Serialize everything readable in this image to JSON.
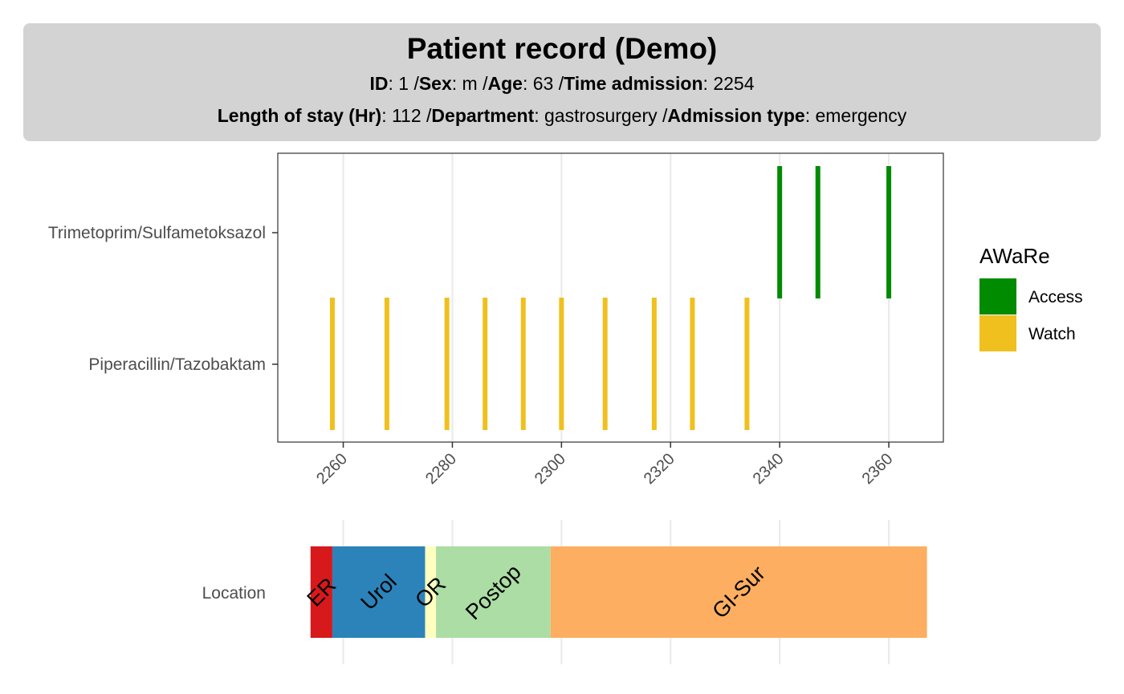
{
  "header": {
    "title": "Patient record (Demo)",
    "line1": [
      {
        "label": "ID",
        "value": ": 1 /"
      },
      {
        "label": "Sex",
        "value": ": m /"
      },
      {
        "label": "Age",
        "value": ": 63 /"
      },
      {
        "label": "Time admission",
        "value": ": 2254"
      }
    ],
    "line2": [
      {
        "label": "Length of stay (Hr)",
        "value": ": 112 /"
      },
      {
        "label": "Department",
        "value": ": gastrosurgery /"
      },
      {
        "label": "Admission type",
        "value": ": emergency"
      }
    ]
  },
  "colors": {
    "header_bg": "#d3d3d3",
    "access": "#008b00",
    "watch": "#f0c01e",
    "grid": "#ebebeb",
    "ER": "#d7191c",
    "Urol": "#2b83ba",
    "OR": "#ffffbf",
    "Postop": "#abdda4",
    "GI-Sur": "#fdae61"
  },
  "chart_data": [
    {
      "type": "timeline",
      "xlim": [
        2248,
        2370
      ],
      "x_ticks": [
        2260,
        2280,
        2300,
        2320,
        2340,
        2360
      ],
      "categories": [
        "Trimetoprim/Sulfametoksazol",
        "Piperacillin/Tazobaktam"
      ],
      "legend": {
        "title": "AWaRe",
        "placement": "right",
        "entries": [
          {
            "name": "Access",
            "color": "#008b00"
          },
          {
            "name": "Watch",
            "color": "#f0c01e"
          }
        ]
      },
      "series": [
        {
          "category": "Trimetoprim/Sulfametoksazol",
          "aware": "Access",
          "x": [
            2340,
            2347,
            2360
          ]
        },
        {
          "category": "Piperacillin/Tazobaktam",
          "aware": "Watch",
          "x": [
            2258,
            2268,
            2279,
            2286,
            2293,
            2300,
            2308,
            2317,
            2324,
            2334
          ]
        }
      ]
    },
    {
      "type": "bar",
      "ylabel": "Location",
      "xlim": [
        2248,
        2370
      ],
      "segments": [
        {
          "name": "ER",
          "start": 2254,
          "end": 2258
        },
        {
          "name": "Urol",
          "start": 2258,
          "end": 2275
        },
        {
          "name": "OR",
          "start": 2275,
          "end": 2277
        },
        {
          "name": "Postop",
          "start": 2277,
          "end": 2298
        },
        {
          "name": "GI-Sur",
          "start": 2298,
          "end": 2367
        }
      ]
    }
  ]
}
